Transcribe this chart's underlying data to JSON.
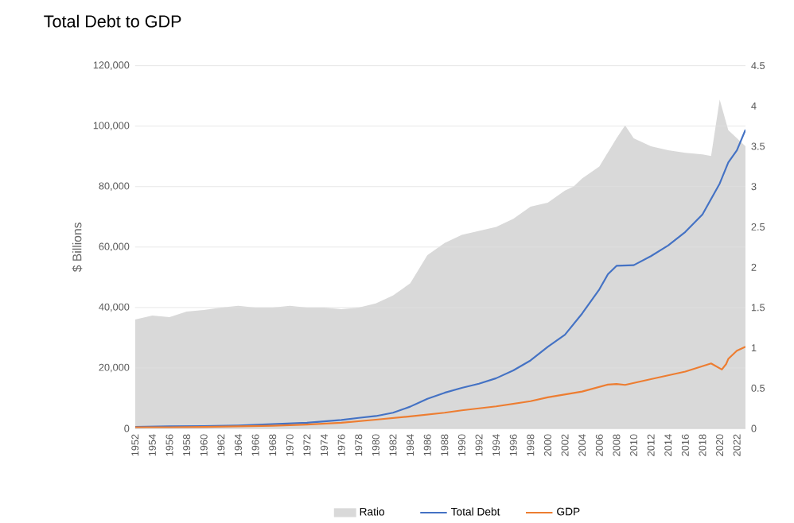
{
  "chart_data": {
    "type": "line",
    "title": "Total Debt to GDP",
    "ylabel": "$ Billions",
    "xlim": [
      1952,
      2023
    ],
    "xticks": [
      1952,
      1954,
      1956,
      1958,
      1960,
      1962,
      1964,
      1966,
      1968,
      1970,
      1972,
      1974,
      1976,
      1978,
      1980,
      1982,
      1984,
      1986,
      1988,
      1990,
      1992,
      1994,
      1996,
      1998,
      2000,
      2002,
      2004,
      2006,
      2008,
      2010,
      2012,
      2014,
      2016,
      2018,
      2020,
      2022
    ],
    "ylim": [
      0,
      120000
    ],
    "yticks": [
      {
        "value": 0,
        "label": "0"
      },
      {
        "value": 20000,
        "label": "20,000"
      },
      {
        "value": 40000,
        "label": "40,000"
      },
      {
        "value": 60000,
        "label": "60,000"
      },
      {
        "value": 80000,
        "label": "80,000"
      },
      {
        "value": 100000,
        "label": "100,000"
      },
      {
        "value": 120000,
        "label": "120,000"
      }
    ],
    "y2lim": [
      0,
      4.5
    ],
    "y2ticks": [
      0,
      0.5,
      1,
      1.5,
      2,
      2.5,
      3,
      3.5,
      4,
      4.5
    ],
    "grid": "y",
    "legend": "bottom",
    "series": [
      {
        "name": "Ratio",
        "type": "area",
        "axis": "y2",
        "color": "#d9d9d9",
        "x": [
          1952,
          1954,
          1956,
          1958,
          1960,
          1962,
          1964,
          1966,
          1968,
          1970,
          1972,
          1974,
          1976,
          1978,
          1980,
          1982,
          1984,
          1986,
          1988,
          1990,
          1992,
          1994,
          1996,
          1998,
          2000,
          2002,
          2003,
          2004,
          2006,
          2008,
          2009,
          2010,
          2012,
          2014,
          2016,
          2018,
          2019,
          2020,
          2021,
          2022,
          2023
        ],
        "values": [
          1.35,
          1.4,
          1.38,
          1.45,
          1.47,
          1.5,
          1.52,
          1.5,
          1.5,
          1.52,
          1.5,
          1.5,
          1.48,
          1.5,
          1.55,
          1.65,
          1.8,
          2.15,
          2.3,
          2.4,
          2.45,
          2.5,
          2.6,
          2.75,
          2.8,
          2.95,
          3.0,
          3.1,
          3.25,
          3.6,
          3.76,
          3.6,
          3.5,
          3.45,
          3.42,
          3.4,
          3.38,
          4.08,
          3.7,
          3.6,
          3.5
        ]
      },
      {
        "name": "Total Debt",
        "color": "#4472c4",
        "x": [
          1952,
          1956,
          1960,
          1964,
          1968,
          1972,
          1976,
          1978,
          1980,
          1982,
          1984,
          1986,
          1988,
          1990,
          1992,
          1994,
          1996,
          1998,
          2000,
          2002,
          2004,
          2006,
          2007,
          2008,
          2010,
          2012,
          2014,
          2016,
          2018,
          2020,
          2021,
          2022,
          2023
        ],
        "values": [
          500,
          700,
          800,
          1000,
          1400,
          1900,
          2800,
          3500,
          4100,
          5200,
          7200,
          9800,
          11800,
          13400,
          14800,
          16600,
          19200,
          22500,
          27000,
          31000,
          38000,
          46000,
          51000,
          53800,
          54000,
          57000,
          60500,
          65000,
          70800,
          81000,
          88000,
          92000,
          98800
        ]
      },
      {
        "name": "GDP",
        "color": "#ed7d31",
        "x": [
          1952,
          1956,
          1960,
          1964,
          1968,
          1972,
          1976,
          1980,
          1984,
          1988,
          1990,
          1994,
          1998,
          2000,
          2004,
          2007,
          2008,
          2009,
          2012,
          2016,
          2019,
          2020.25,
          2020.75,
          2021,
          2022,
          2023
        ],
        "values": [
          400,
          400,
          500,
          700,
          900,
          1300,
          1900,
          2900,
          4000,
          5200,
          6000,
          7300,
          9000,
          10300,
          12200,
          14500,
          14700,
          14400,
          16300,
          18800,
          21500,
          19500,
          21300,
          23000,
          25700,
          27000
        ]
      }
    ]
  }
}
